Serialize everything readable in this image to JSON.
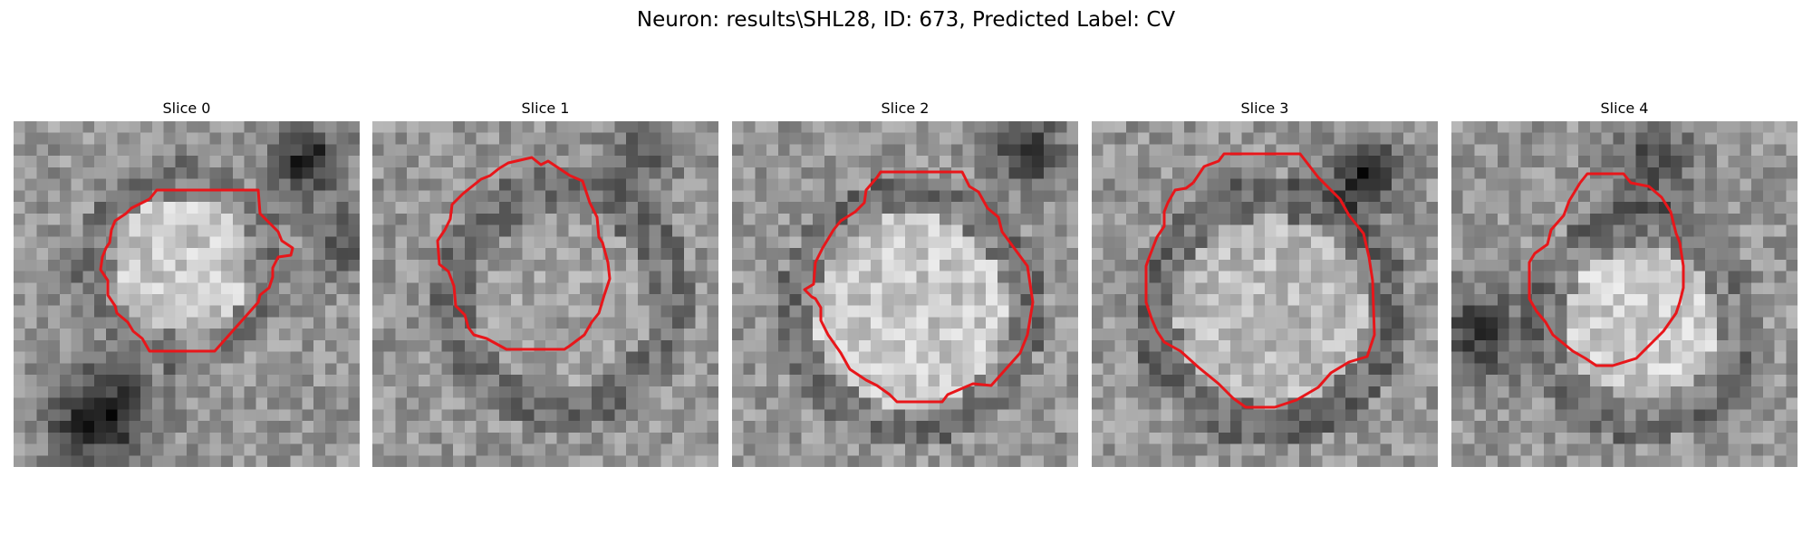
{
  "figure": {
    "title": "Neuron: results\\SHL28, ID: 673, Predicted Label: CV"
  },
  "slices": [
    {
      "title": "Slice 0"
    },
    {
      "title": "Slice 1"
    },
    {
      "title": "Slice 2"
    },
    {
      "title": "Slice 3"
    },
    {
      "title": "Slice 4"
    }
  ],
  "colors": {
    "contour": "#e8161a",
    "background": "#ffffff",
    "image_colormap": "gray"
  }
}
